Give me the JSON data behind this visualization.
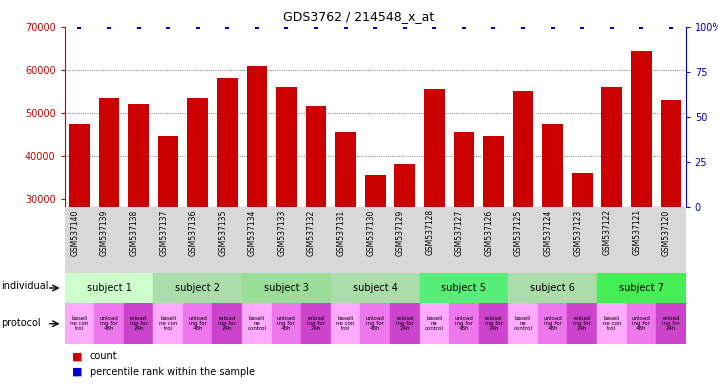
{
  "title": "GDS3762 / 214548_x_at",
  "samples": [
    "GSM537140",
    "GSM537139",
    "GSM537138",
    "GSM537137",
    "GSM537136",
    "GSM537135",
    "GSM537134",
    "GSM537133",
    "GSM537132",
    "GSM537131",
    "GSM537130",
    "GSM537129",
    "GSM537128",
    "GSM537127",
    "GSM537126",
    "GSM537125",
    "GSM537124",
    "GSM537123",
    "GSM537122",
    "GSM537121",
    "GSM537120"
  ],
  "counts": [
    47500,
    53500,
    52000,
    44500,
    53500,
    58000,
    61000,
    56000,
    51500,
    45500,
    35500,
    38000,
    55500,
    45500,
    44500,
    55000,
    47500,
    36000,
    56000,
    64500,
    53000
  ],
  "percentile": [
    100,
    100,
    100,
    100,
    100,
    100,
    100,
    100,
    100,
    100,
    100,
    100,
    100,
    100,
    100,
    100,
    100,
    100,
    100,
    100,
    100
  ],
  "bar_color": "#cc0000",
  "percentile_color": "#0000cc",
  "ylim_left": [
    28000,
    70000
  ],
  "ylim_right": [
    0,
    100
  ],
  "yticks_left": [
    30000,
    40000,
    50000,
    60000,
    70000
  ],
  "yticks_right": [
    0,
    25,
    50,
    75,
    100
  ],
  "subjects": [
    {
      "label": "subject 1",
      "start": 0,
      "end": 3
    },
    {
      "label": "subject 2",
      "start": 3,
      "end": 6
    },
    {
      "label": "subject 3",
      "start": 6,
      "end": 9
    },
    {
      "label": "subject 4",
      "start": 9,
      "end": 12
    },
    {
      "label": "subject 5",
      "start": 12,
      "end": 15
    },
    {
      "label": "subject 6",
      "start": 15,
      "end": 18
    },
    {
      "label": "subject 7",
      "start": 18,
      "end": 21
    }
  ],
  "subject_colors": [
    "#ccffcc",
    "#aaddaa",
    "#99dd99",
    "#aaddaa",
    "#55ee77",
    "#aaddaa",
    "#44ee55"
  ],
  "prot_labels": [
    "baseli\nne con\ntrol",
    "unload\ning for\n48h",
    "reload\ning for\n24h",
    "baseli\nne con\ntrol",
    "unload\ning for\n48h",
    "reload\ning for\n24h",
    "baseli\nne\ncontrol",
    "unload\ning for\n48h",
    "reload\ning for\n24h",
    "baseli\nne con\ntrol",
    "unload\ning for\n48h",
    "reload\ning for\n24h",
    "baseli\nne\ncontrol",
    "unload\ning for\n48h",
    "reload\ning for\n24h",
    "baseli\nne\ncontrol",
    "unload\ning for\n48h",
    "reload\ning for\n24h",
    "baseli\nne con\ntrol",
    "unload\ning for\n48h",
    "reload\ning for\n24h"
  ],
  "prot_colors": [
    "#ffaaff",
    "#ee77ee",
    "#cc44cc",
    "#ffaaff",
    "#ee77ee",
    "#cc44cc",
    "#ffaaff",
    "#ee77ee",
    "#cc44cc",
    "#ffaaff",
    "#ee77ee",
    "#cc44cc",
    "#ffaaff",
    "#ee77ee",
    "#cc44cc",
    "#ffaaff",
    "#ee77ee",
    "#cc44cc",
    "#ffaaff",
    "#ee77ee",
    "#cc44cc"
  ],
  "background_color": "#ffffff",
  "tick_label_color_left": "#cc0000",
  "tick_label_color_right": "#0000cc",
  "sample_bg_color": "#d8d8d8"
}
